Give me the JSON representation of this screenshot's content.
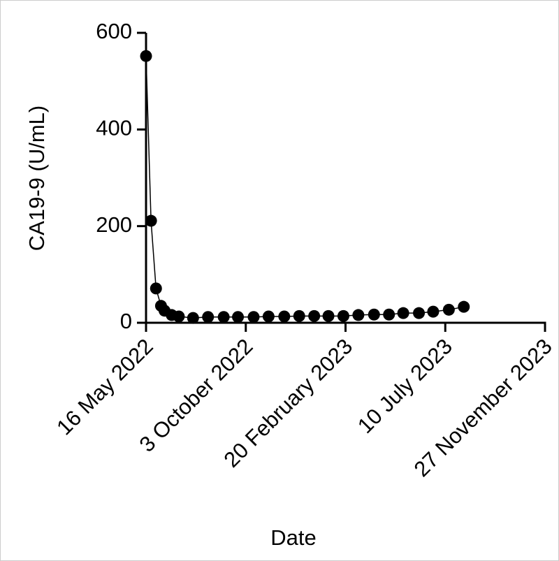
{
  "chart_data": {
    "type": "line",
    "y_label": "CA19-9 (U/mL)",
    "x_label": "Date",
    "x": [
      "2022-05-16",
      "2022-05-23",
      "2022-05-30",
      "2022-06-06",
      "2022-06-11",
      "2022-06-21",
      "2022-07-01",
      "2022-07-21",
      "2022-08-11",
      "2022-09-02",
      "2022-09-22",
      "2022-10-14",
      "2022-11-04",
      "2022-11-26",
      "2022-12-17",
      "2023-01-07",
      "2023-01-27",
      "2023-02-17",
      "2023-03-10",
      "2023-04-01",
      "2023-04-22",
      "2023-05-12",
      "2023-06-03",
      "2023-06-23",
      "2023-07-15",
      "2023-08-05"
    ],
    "values": [
      552,
      211,
      71,
      35,
      25,
      16,
      13,
      10,
      12,
      12,
      12,
      12,
      13,
      13,
      14,
      14,
      14,
      14,
      16,
      17,
      17,
      20,
      20,
      23,
      27,
      33
    ],
    "color": "#000000",
    "xlim": [
      "2022-05-16",
      "2023-11-27"
    ],
    "xticks": [
      {
        "value": "2022-05-16",
        "label": "16 May 2022"
      },
      {
        "value": "2022-10-03",
        "label": "3 October 2022"
      },
      {
        "value": "2023-02-20",
        "label": "20 February 2023"
      },
      {
        "value": "2023-07-10",
        "label": "10 July 2023"
      },
      {
        "value": "2023-11-27",
        "label": "27 November 2023"
      }
    ],
    "ylim": [
      0,
      600
    ],
    "yticks": [
      0,
      200,
      400,
      600
    ],
    "grid": false
  }
}
